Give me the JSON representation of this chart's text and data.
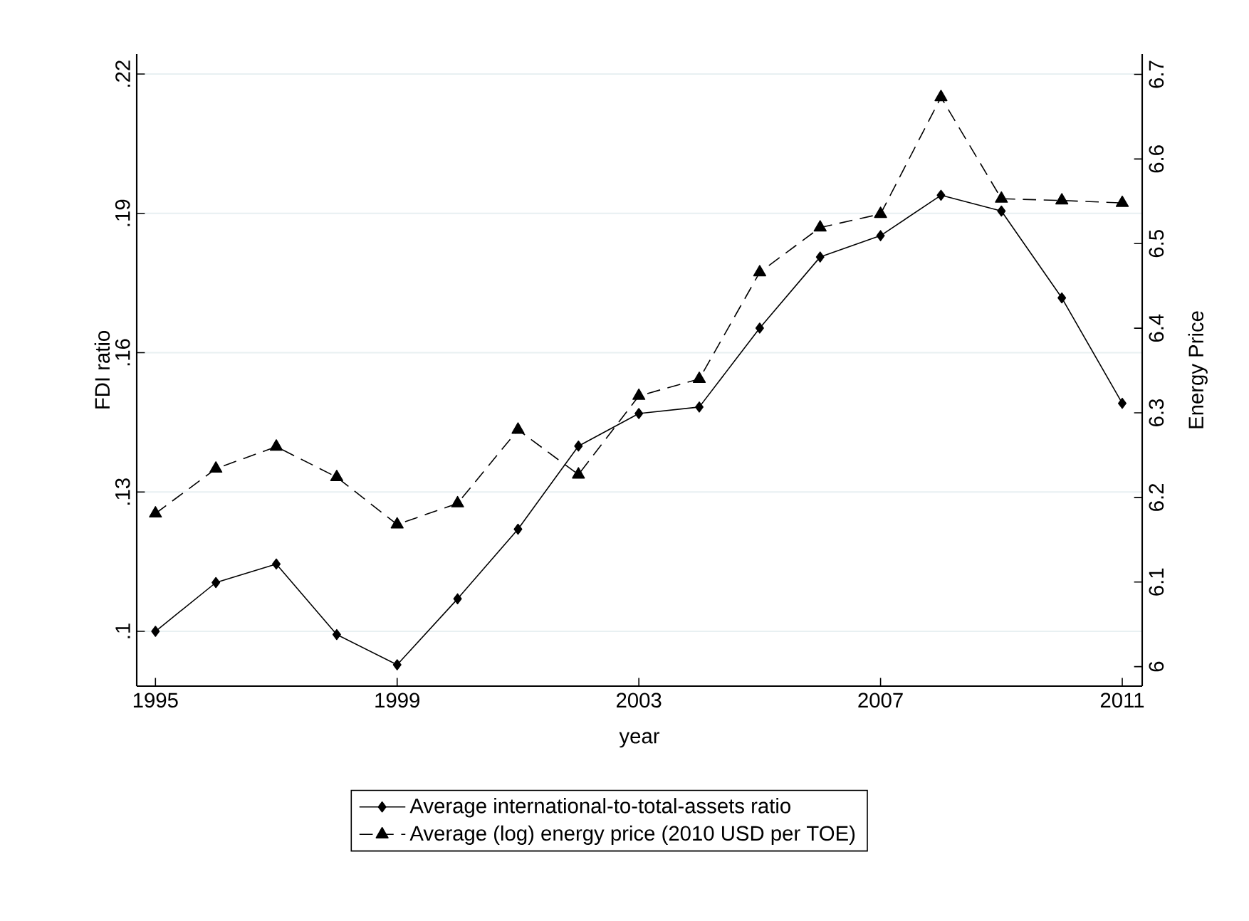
{
  "chart_data": {
    "type": "line",
    "xlabel": "year",
    "ylabel": "FDI ratio",
    "y2label": "Energy Price",
    "x": [
      1995,
      1996,
      1997,
      1998,
      1999,
      2000,
      2001,
      2002,
      2003,
      2004,
      2005,
      2006,
      2007,
      2008,
      2009,
      2010,
      2011
    ],
    "series": [
      {
        "name": "Average international-to-total-assets ratio",
        "color": "#000000",
        "marker": "diamond",
        "line_style": "solid",
        "values": [
          0.1,
          0.1105,
          0.1145,
          0.0993,
          0.0928,
          0.107,
          0.122,
          0.1399,
          0.1469,
          0.1483,
          0.1653,
          0.1806,
          0.1852,
          0.1939,
          0.1905,
          0.1718,
          0.1491
        ]
      },
      {
        "name": "Average (log) energy price (2010 USD per TOE)",
        "color": "#000000",
        "marker": "triangle",
        "line_style": "dashed",
        "axis": "y2",
        "values": [
          6.181,
          6.234,
          6.26,
          6.224,
          6.168,
          6.193,
          6.28,
          6.227,
          6.32,
          6.34,
          6.466,
          6.519,
          6.535,
          6.673,
          6.553,
          6.551,
          6.548
        ]
      }
    ],
    "xlim": [
      1994.69,
      2011.33
    ],
    "xticks": [
      1995,
      1999,
      2003,
      2007,
      2011
    ],
    "ylim": [
      0.0882,
      0.2243
    ],
    "yticks": [
      {
        "value": 0.1,
        "label": ".1"
      },
      {
        "value": 0.13,
        "label": ".13"
      },
      {
        "value": 0.16,
        "label": ".16"
      },
      {
        "value": 0.19,
        "label": ".19"
      },
      {
        "value": 0.22,
        "label": ".22"
      }
    ],
    "y2lim": [
      5.977,
      6.724
    ],
    "y2ticks": [
      6,
      6.1,
      6.2,
      6.3,
      6.4,
      6.5,
      6.6,
      6.7
    ],
    "grid": "y",
    "legend": "bottom"
  }
}
